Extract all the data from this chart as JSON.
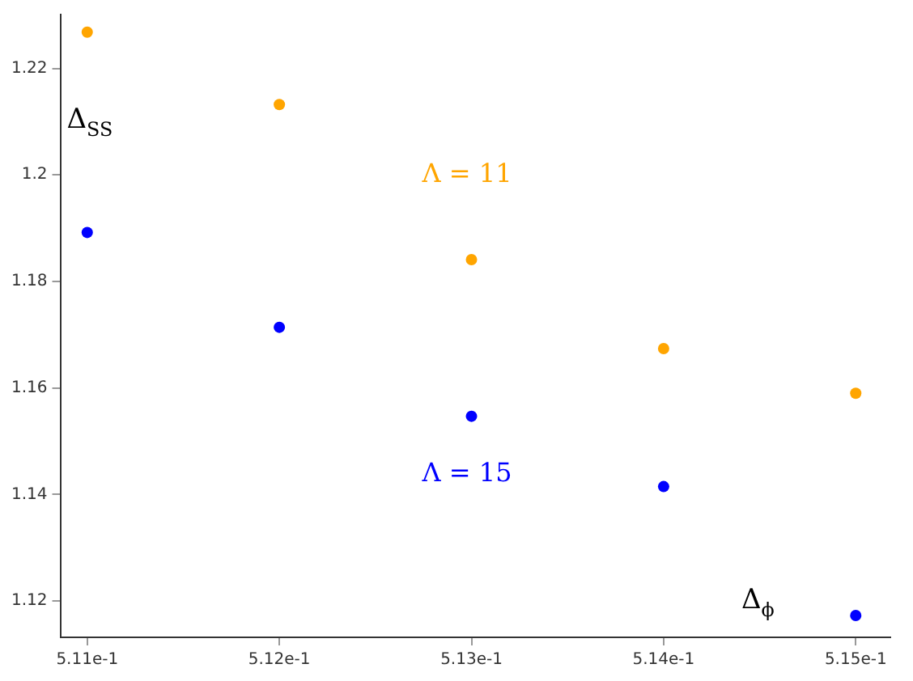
{
  "chart_data": {
    "type": "scatter",
    "xlabel": "Δ$_{ϕ}$",
    "ylabel": "Δ$_{SS}$",
    "x": [
      0.511,
      0.512,
      0.513,
      0.514,
      0.515
    ],
    "series": [
      {
        "name": "Λ = 11",
        "color": "#ffa500",
        "values": [
          1.2268,
          1.2132,
          1.1841,
          1.1674,
          1.159
        ]
      },
      {
        "name": "Λ = 15",
        "color": "#0000ff",
        "values": [
          1.1892,
          1.1714,
          1.1547,
          1.1415,
          1.1173
        ]
      }
    ],
    "xlim": [
      0.51086,
      0.51518
    ],
    "ylim": [
      1.1132,
      1.2301
    ],
    "xticks": [
      {
        "value": 0.511,
        "label": "5.11e-1"
      },
      {
        "value": 0.512,
        "label": "5.12e-1"
      },
      {
        "value": 0.513,
        "label": "5.13e-1"
      },
      {
        "value": 0.514,
        "label": "5.14e-1"
      },
      {
        "value": 0.515,
        "label": "5.15e-1"
      }
    ],
    "yticks": [
      1.12,
      1.14,
      1.16,
      1.18,
      1.2,
      1.22
    ],
    "grid": false,
    "legend": false,
    "marker": "circle"
  }
}
